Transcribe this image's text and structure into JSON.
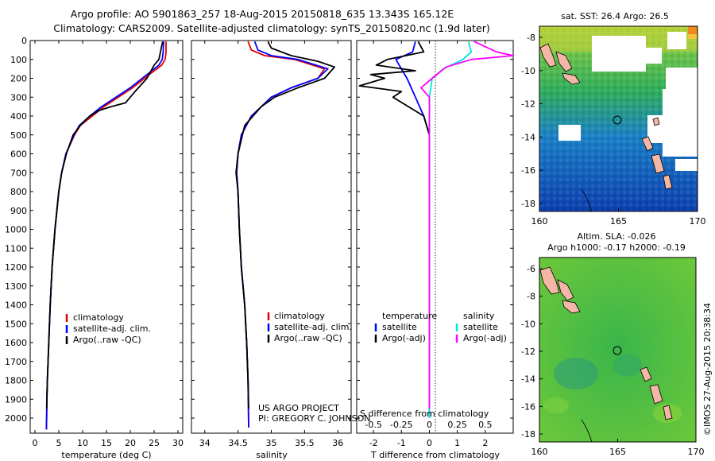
{
  "header": {
    "line1": "Argo profile: AO 5901863_257 18-Aug-2015 20150818_635 13.343S 165.12E",
    "line2": "Climatology: CARS2009. Satellite-adjusted climatology: synTS_20150820.nc (1.9d later)"
  },
  "credit": "US ARGO PROJECT",
  "pi": "PI: GREGORY C. JOHNSON",
  "watermark": "©IMOS 27-Aug-2015 20:38:34",
  "colors": {
    "clim": "#e00000",
    "sat": "#0000ff",
    "argo": "#000000",
    "sat_s": "#00e5e5",
    "argo_s": "#ff00ff"
  },
  "chart_data": [
    {
      "type": "line",
      "panel": "temperature",
      "xlabel": "temperature (deg C)",
      "xlim": [
        -1,
        31
      ],
      "xticks": [
        0,
        5,
        10,
        15,
        20,
        25,
        30
      ],
      "ylim": [
        2080,
        0
      ],
      "yticks": [
        0,
        100,
        200,
        300,
        400,
        500,
        600,
        700,
        800,
        900,
        1000,
        1100,
        1200,
        1300,
        1400,
        1500,
        1600,
        1700,
        1800,
        1900,
        2000
      ],
      "legend": [
        "climatology",
        "satellite-adj. clim.",
        "Argo(..raw -QC)"
      ],
      "series": [
        {
          "name": "climatology",
          "x": [
            27.5,
            27.5,
            27.3,
            26.6,
            24,
            20.5,
            17.5,
            14.5,
            12,
            9.5,
            8.3,
            6.5,
            5.6,
            5,
            4.2,
            3.6,
            3.2,
            2.9,
            2.6,
            2.5,
            2.45,
            2.4
          ],
          "y": [
            5,
            60,
            100,
            130,
            180,
            250,
            300,
            350,
            400,
            450,
            500,
            600,
            700,
            800,
            1000,
            1200,
            1400,
            1600,
            1800,
            1900,
            2000,
            2060
          ]
        },
        {
          "name": "satellite-adj. clim.",
          "x": [
            27,
            26.9,
            26.7,
            26,
            23.5,
            20,
            17,
            14,
            11.5,
            9.3,
            8.2,
            6.5,
            5.6,
            5,
            4.2,
            3.6,
            3.2,
            2.9,
            2.6,
            2.5,
            2.45,
            2.4
          ],
          "y": [
            5,
            60,
            100,
            130,
            180,
            250,
            300,
            350,
            400,
            450,
            500,
            600,
            700,
            800,
            1000,
            1200,
            1400,
            1600,
            1800,
            1900,
            2000,
            2060
          ]
        },
        {
          "name": "Argo(..raw -QC)",
          "x": [
            26.8,
            26.5,
            26,
            25,
            23.5,
            21,
            19,
            16,
            13.5,
            11.5,
            9.5,
            8,
            6.6,
            5.6,
            5,
            4.2,
            3.6,
            3.2,
            2.9,
            2.6,
            2.45
          ],
          "y": [
            5,
            40,
            100,
            130,
            200,
            270,
            330,
            350,
            370,
            400,
            450,
            500,
            600,
            700,
            800,
            1000,
            1200,
            1400,
            1600,
            1800,
            1950
          ]
        }
      ]
    },
    {
      "type": "line",
      "panel": "salinity",
      "xlabel": "salinity",
      "xlim": [
        33.8,
        36.2
      ],
      "xticks": [
        34,
        34.5,
        35,
        35.5,
        36
      ],
      "xticklabels": [
        "34",
        "34.5",
        "35",
        "35.5",
        "36"
      ],
      "ylim": [
        2080,
        0
      ],
      "legend": [
        "climatology",
        "satellite-adj. clim.",
        "Argo(..raw -QC)"
      ],
      "series": [
        {
          "name": "climatology",
          "x": [
            34.65,
            34.7,
            34.9,
            35.35,
            35.8,
            35.7,
            35.3,
            35,
            34.7,
            34.55,
            34.5,
            34.48,
            34.5,
            34.52,
            34.55,
            34.6,
            34.63,
            34.65,
            34.66
          ],
          "y": [
            5,
            50,
            80,
            100,
            150,
            200,
            250,
            300,
            400,
            500,
            600,
            700,
            800,
            1000,
            1200,
            1400,
            1600,
            1800,
            2050
          ]
        },
        {
          "name": "satellite-adj. clim.",
          "x": [
            34.75,
            34.8,
            35,
            35.4,
            35.85,
            35.7,
            35.3,
            35,
            34.7,
            34.55,
            34.5,
            34.48,
            34.5,
            34.52,
            34.55,
            34.6,
            34.63,
            34.65,
            34.66
          ],
          "y": [
            5,
            50,
            80,
            100,
            150,
            200,
            250,
            300,
            400,
            500,
            600,
            700,
            800,
            1000,
            1200,
            1400,
            1600,
            1800,
            2050
          ]
        },
        {
          "name": "Argo(..raw -QC)",
          "x": [
            34.95,
            35,
            35.3,
            35.7,
            35.95,
            35.8,
            35.4,
            35.05,
            34.85,
            34.6,
            34.5,
            34.47,
            34.5,
            34.52,
            34.55,
            34.6,
            34.63,
            34.65,
            34.66
          ],
          "y": [
            5,
            40,
            80,
            110,
            140,
            200,
            250,
            300,
            350,
            450,
            600,
            700,
            800,
            1000,
            1200,
            1400,
            1600,
            1800,
            1950
          ]
        }
      ]
    },
    {
      "type": "line",
      "panel": "difference",
      "xlabel": "T difference from climatology",
      "xlabel2": "S difference from climatology",
      "xlim": [
        -2.6,
        3.0
      ],
      "xticks": [
        -2,
        -1,
        0,
        1,
        2
      ],
      "s_ticklabels": [
        "-0.5",
        "-0.25",
        "0",
        "0.25",
        "0.5"
      ],
      "ylim": [
        2080,
        0
      ],
      "legend": {
        "temperature_title": "temperature",
        "salinity_title": "salinity",
        "items": [
          "satellite",
          "Argo(-adj)",
          "satellite",
          "Argo(-adj)"
        ]
      },
      "series": [
        {
          "name": "T satellite",
          "x": [
            -0.5,
            -0.6,
            -1.2,
            -0.8,
            -0.5,
            -0.2,
            0,
            0,
            0,
            0,
            0
          ],
          "y": [
            5,
            60,
            100,
            200,
            300,
            400,
            500,
            600,
            700,
            1000,
            2000
          ]
        },
        {
          "name": "T Argo",
          "x": [
            -0.4,
            -0.2,
            -1.5,
            -1.9,
            -0.5,
            -2.1,
            -1.6,
            -2.5,
            -1,
            -1.3,
            -0.2,
            0,
            0,
            0,
            0
          ],
          "y": [
            5,
            60,
            100,
            130,
            160,
            180,
            200,
            240,
            270,
            300,
            400,
            500,
            600,
            1000,
            1950
          ]
        },
        {
          "name": "S satellite",
          "x": [
            1.4,
            1.5,
            1.2,
            0.5,
            0.1,
            0,
            0,
            0
          ],
          "y": [
            5,
            60,
            100,
            150,
            200,
            300,
            1000,
            2000
          ]
        },
        {
          "name": "S Argo",
          "x": [
            1.6,
            2.4,
            3,
            1.5,
            0.6,
            0.1,
            -0.3,
            0,
            0,
            0
          ],
          "y": [
            5,
            60,
            80,
            100,
            140,
            200,
            250,
            300,
            1000,
            1950
          ]
        }
      ]
    }
  ],
  "maps": {
    "sst": {
      "title": "sat. SST: 26.4  Argo: 26.5",
      "xticks": [
        "160",
        "165",
        "170"
      ],
      "yticks": [
        "-8",
        "-10",
        "-12",
        "-14",
        "-16",
        "-18"
      ]
    },
    "sla": {
      "title1": "Altim. SLA: -0.026",
      "title2": "Argo h1000: -0.17  h2000: -0.19",
      "xticks": [
        "160",
        "165",
        "170"
      ],
      "yticks": [
        "-6",
        "-8",
        "-10",
        "-12",
        "-14",
        "-16",
        "-18"
      ]
    }
  }
}
